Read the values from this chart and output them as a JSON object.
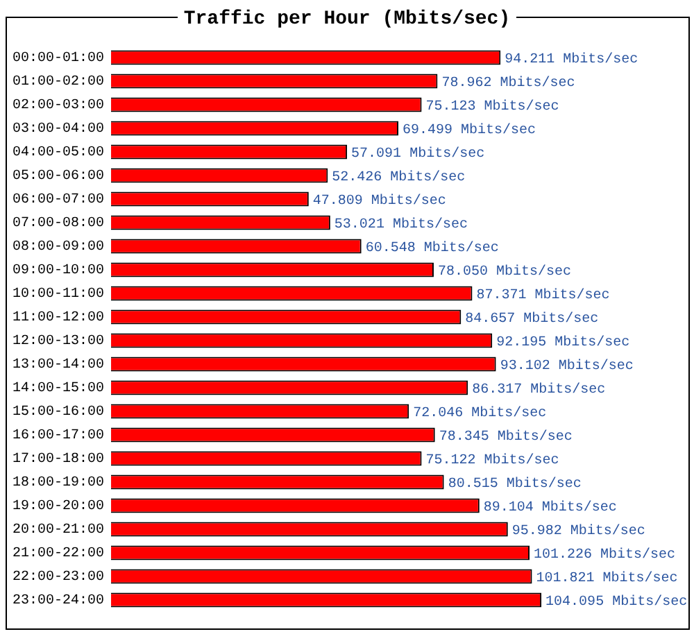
{
  "chart_data": {
    "type": "bar",
    "orientation": "horizontal",
    "title": "Traffic per Hour (Mbits/sec)",
    "categories": [
      "00:00-01:00",
      "01:00-02:00",
      "02:00-03:00",
      "03:00-04:00",
      "04:00-05:00",
      "05:00-06:00",
      "06:00-07:00",
      "07:00-08:00",
      "08:00-09:00",
      "09:00-10:00",
      "10:00-11:00",
      "11:00-12:00",
      "12:00-13:00",
      "13:00-14:00",
      "14:00-15:00",
      "15:00-16:00",
      "16:00-17:00",
      "17:00-18:00",
      "18:00-19:00",
      "19:00-20:00",
      "20:00-21:00",
      "21:00-22:00",
      "22:00-23:00",
      "23:00-24:00"
    ],
    "values": [
      94.211,
      78.962,
      75.123,
      69.499,
      57.091,
      52.426,
      47.809,
      53.021,
      60.548,
      78.05,
      87.371,
      84.657,
      92.195,
      93.102,
      86.317,
      72.046,
      78.345,
      75.122,
      80.515,
      89.104,
      95.982,
      101.226,
      101.821,
      104.095
    ],
    "value_labels": [
      "94.211 Mbits/sec",
      "78.962 Mbits/sec",
      "75.123 Mbits/sec",
      "69.499 Mbits/sec",
      "57.091 Mbits/sec",
      "52.426 Mbits/sec",
      "47.809 Mbits/sec",
      "53.021 Mbits/sec",
      "60.548 Mbits/sec",
      "78.050 Mbits/sec",
      "87.371 Mbits/sec",
      "84.657 Mbits/sec",
      "92.195 Mbits/sec",
      "93.102 Mbits/sec",
      "86.317 Mbits/sec",
      "72.046 Mbits/sec",
      "78.345 Mbits/sec",
      "75.122 Mbits/sec",
      "80.515 Mbits/sec",
      "89.104 Mbits/sec",
      "95.982 Mbits/sec",
      "101.226 Mbits/sec",
      "101.821 Mbits/sec",
      "104.095 Mbits/sec"
    ],
    "color": "#ff0000",
    "xlim": [
      0,
      140
    ],
    "tick_labels": "y",
    "legend": false
  }
}
